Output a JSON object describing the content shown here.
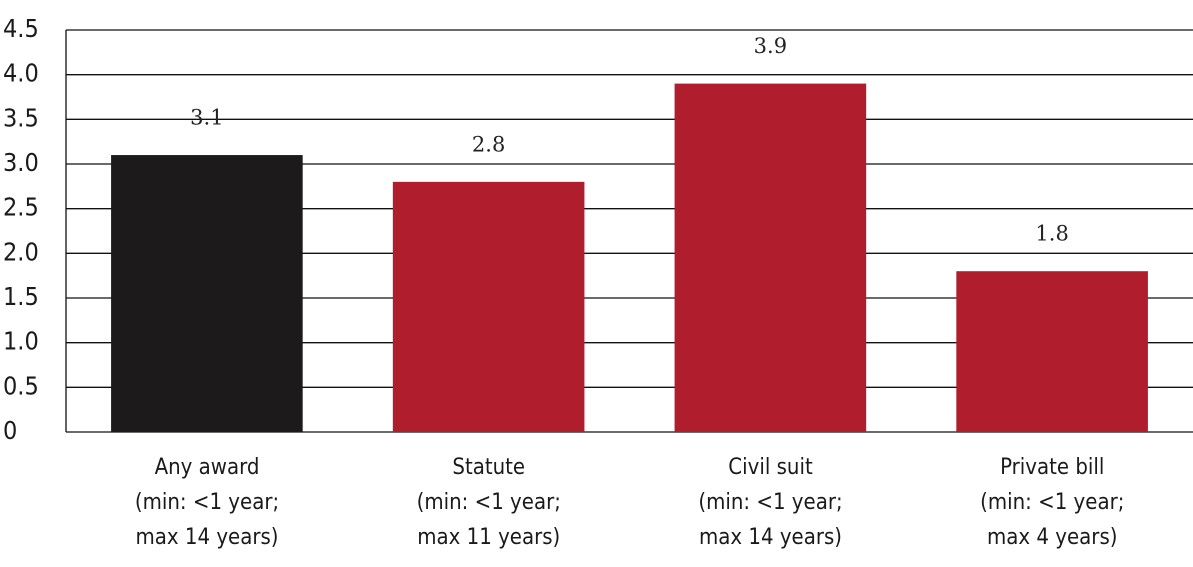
{
  "chart_data": {
    "type": "bar",
    "categories": [
      "Any award\n(min: <1 year;\nmax 14 years)",
      "Statute\n(min: <1 year;\nmax 11 years)",
      "Civil suit\n(min: <1 year;\nmax 14 years)",
      "Private bill\n(min: <1 year;\nmax 4 years)"
    ],
    "values": [
      3.1,
      2.8,
      3.9,
      1.8
    ],
    "colors": [
      "#1c1a1b",
      "#b01d2d",
      "#b01d2d",
      "#b01d2d"
    ],
    "ylim": [
      0,
      4.5
    ],
    "yticks": [
      0,
      0.5,
      {
        "value": 1,
        "label": "1.0"
      },
      1.5,
      {
        "value": 2,
        "label": "2.0"
      },
      2.5,
      {
        "value": 3,
        "label": "3.0"
      },
      3.5,
      {
        "value": 4,
        "label": "4.0"
      },
      4.5
    ],
    "grid": true
  }
}
